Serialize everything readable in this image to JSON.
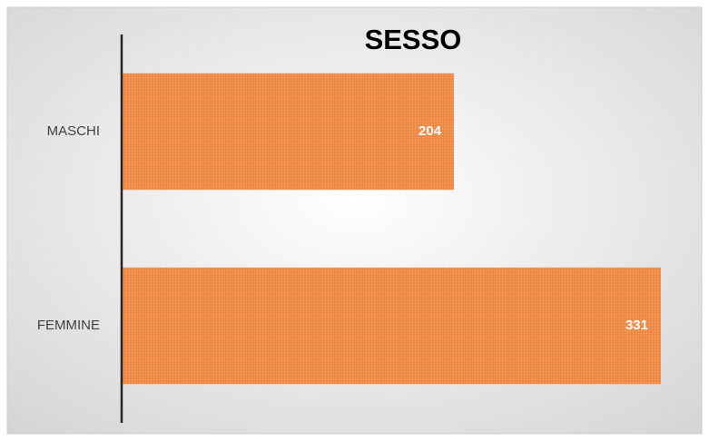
{
  "chart_data": {
    "type": "hbar",
    "title": "SESSO",
    "categories": [
      "MASCHI",
      "FEMMINE"
    ],
    "values": [
      204,
      331
    ],
    "color": "#ee8a45"
  }
}
